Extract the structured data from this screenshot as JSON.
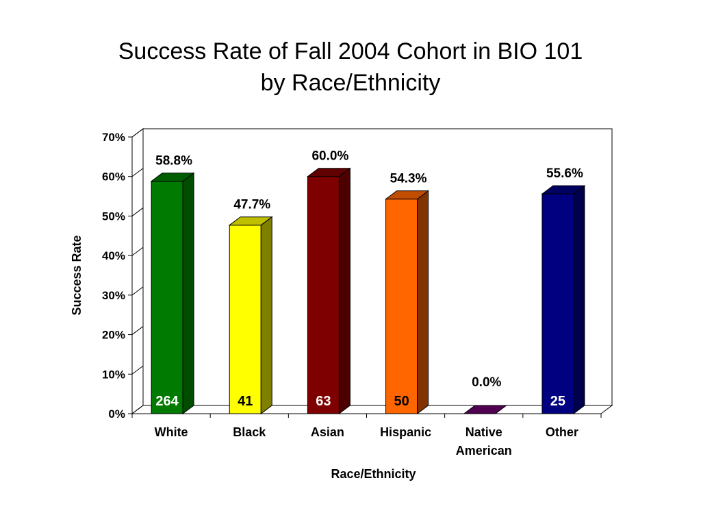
{
  "title_line1": "Success Rate of Fall 2004 Cohort in BIO 101",
  "title_line2": "by Race/Ethnicity",
  "chart_data": {
    "type": "bar",
    "categories": [
      [
        "White"
      ],
      [
        "Black"
      ],
      [
        "Asian"
      ],
      [
        "Hispanic"
      ],
      [
        "Native",
        "American"
      ],
      [
        "Other"
      ]
    ],
    "values": [
      58.8,
      47.7,
      60.0,
      54.3,
      0.0,
      55.6
    ],
    "value_labels": [
      "58.8%",
      "47.7%",
      "60.0%",
      "54.3%",
      "0.0%",
      "55.6%"
    ],
    "counts": [
      "264",
      "41",
      "63",
      "50",
      "",
      "25"
    ],
    "colors": [
      "#007a00",
      "#ffff00",
      "#7f0000",
      "#ff6600",
      "#6a006a",
      "#000080"
    ],
    "side_colors": [
      "#004d00",
      "#7f7f00",
      "#4d0000",
      "#803300",
      "#400040",
      "#00004d"
    ],
    "top_colors": [
      "#005c00",
      "#bfbf00",
      "#600000",
      "#c04d00",
      "#500050",
      "#000060"
    ],
    "count_colors": [
      "#ffffff",
      "#000000",
      "#ffffff",
      "#000000",
      "#ffffff",
      "#ffffff"
    ],
    "xlabel": "Race/Ethnicity",
    "ylabel": "Success Rate",
    "ylim": [
      0,
      70
    ],
    "yticks": [
      "0%",
      "10%",
      "20%",
      "30%",
      "40%",
      "50%",
      "60%",
      "70%"
    ],
    "grid": false,
    "legend": "none"
  }
}
